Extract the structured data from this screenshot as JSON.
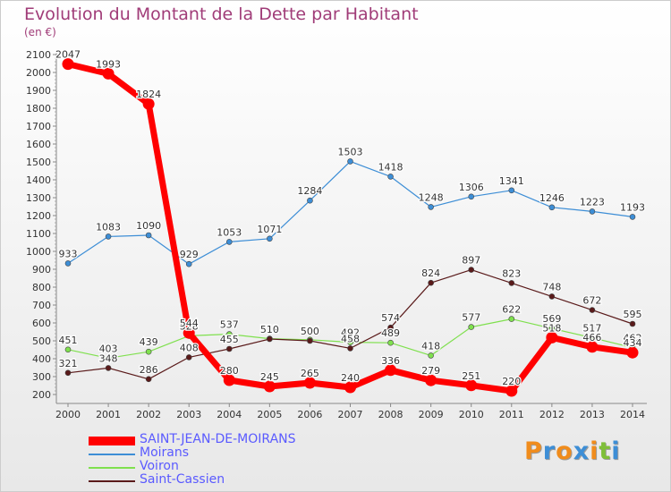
{
  "chart_data": {
    "type": "line",
    "title": "Evolution du Montant de la Dette par Habitant",
    "unit_label": "(en €)",
    "x": [
      "2000",
      "2001",
      "2002",
      "2003",
      "2004",
      "2005",
      "2006",
      "2007",
      "2008",
      "2009",
      "2010",
      "2011",
      "2012",
      "2013",
      "2014"
    ],
    "ylim": [
      200,
      2100
    ],
    "y_ticks": [
      200,
      300,
      400,
      500,
      600,
      700,
      800,
      900,
      1000,
      1100,
      1200,
      1300,
      1400,
      1500,
      1600,
      1700,
      1800,
      1900,
      2000,
      2100
    ],
    "grid": false,
    "legend_position": "bottom-left",
    "series": [
      {
        "name": "SAINT-JEAN-DE-MOIRANS",
        "color": "#ff0000",
        "values": [
          2047,
          1993,
          1824,
          544,
          280,
          245,
          265,
          240,
          336,
          279,
          251,
          220,
          518,
          466,
          434
        ]
      },
      {
        "name": "Moirans",
        "color": "#3d8ed6",
        "values": [
          933,
          1083,
          1090,
          929,
          1053,
          1071,
          1284,
          1503,
          1418,
          1248,
          1306,
          1341,
          1246,
          1223,
          1193
        ]
      },
      {
        "name": "Voiron",
        "color": "#7fe04e",
        "values": [
          451,
          403,
          439,
          528,
          537,
          512,
          506,
          492,
          489,
          418,
          577,
          622,
          569,
          517,
          462
        ]
      },
      {
        "name": "Saint-Cassien",
        "color": "#5a1a1a",
        "values": [
          321,
          348,
          286,
          408,
          455,
          510,
          500,
          458,
          574,
          824,
          897,
          823,
          748,
          672,
          595
        ]
      }
    ]
  },
  "brand": {
    "logo_text": "Proxiti",
    "letter_colors": [
      "#f08c1c",
      "#3d8ed6",
      "#f08c1c",
      "#3d8ed6",
      "#f08c1c",
      "#7fbf3a",
      "#3d8ed6"
    ]
  }
}
